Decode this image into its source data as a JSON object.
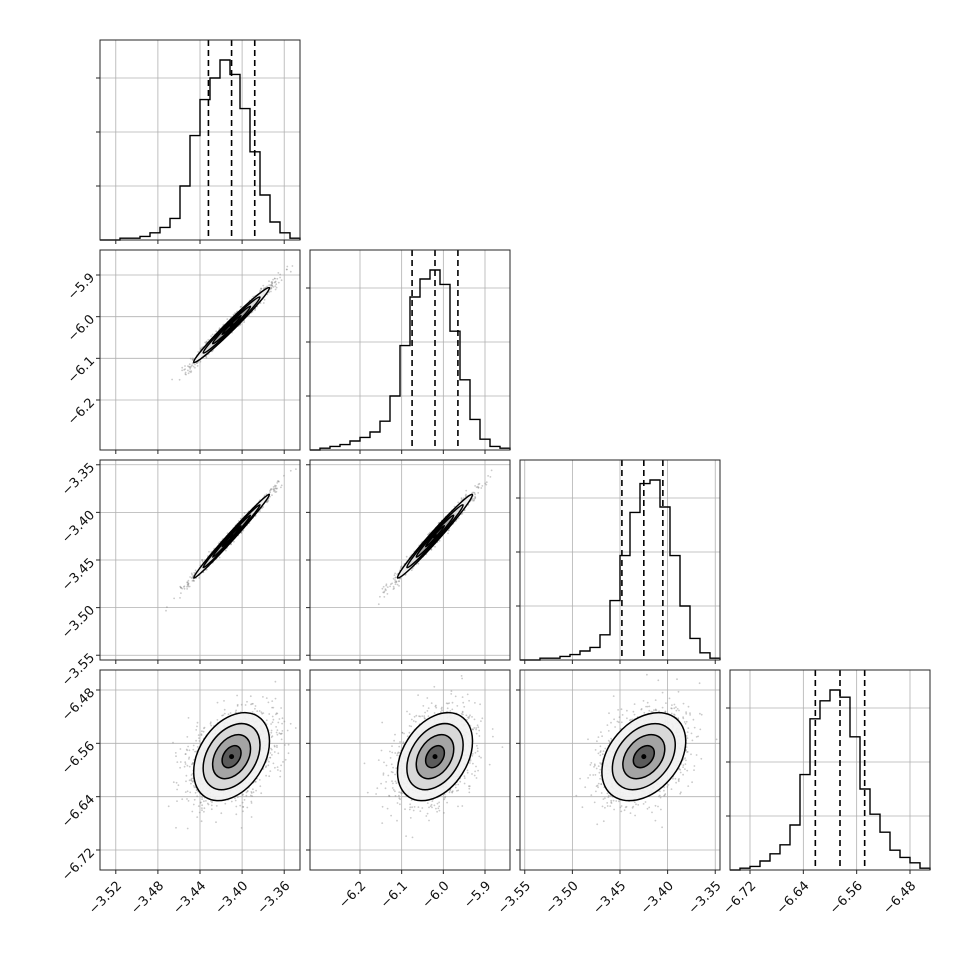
{
  "chart_data": {
    "type": "corner",
    "grid": true,
    "parameters": [
      {
        "range": [
          -3.535,
          -3.345
        ],
        "ticks": [
          -3.52,
          -3.48,
          -3.44,
          -3.4,
          -3.36
        ],
        "tick_labels": [
          "−3.52",
          "−3.48",
          "−3.44",
          "−3.40",
          "−3.36"
        ],
        "mean": -3.41,
        "std": 0.018,
        "quantiles": [
          -3.432,
          -3.41,
          -3.388
        ],
        "histogram": [
          0.0,
          0.0,
          0.01,
          0.01,
          0.02,
          0.04,
          0.07,
          0.12,
          0.3,
          0.58,
          0.78,
          0.9,
          1.0,
          0.92,
          0.73,
          0.49,
          0.25,
          0.1,
          0.04,
          0.01
        ]
      },
      {
        "range": [
          -6.32,
          -5.84
        ],
        "ticks": [
          -6.2,
          -6.1,
          -6.0,
          -5.9
        ],
        "tick_labels": [
          "−6.2",
          "−6.1",
          "−6.0",
          "−5.9"
        ],
        "mean": -6.02,
        "std": 0.045,
        "quantiles": [
          -6.075,
          -6.02,
          -5.965
        ],
        "histogram": [
          0.0,
          0.01,
          0.02,
          0.03,
          0.05,
          0.07,
          0.1,
          0.16,
          0.3,
          0.58,
          0.85,
          0.95,
          1.0,
          0.92,
          0.66,
          0.39,
          0.17,
          0.06,
          0.02,
          0.01
        ]
      },
      {
        "range": [
          -3.555,
          -3.345
        ],
        "ticks": [
          -3.55,
          -3.5,
          -3.45,
          -3.4,
          -3.35
        ],
        "tick_labels": [
          "−3.55",
          "−3.50",
          "−3.45",
          "−3.40",
          "−3.35"
        ],
        "mean": -3.425,
        "std": 0.022,
        "quantiles": [
          -3.448,
          -3.425,
          -3.405
        ],
        "histogram": [
          0.0,
          0.0,
          0.01,
          0.01,
          0.02,
          0.03,
          0.05,
          0.07,
          0.14,
          0.33,
          0.58,
          0.82,
          0.98,
          1.0,
          0.85,
          0.58,
          0.3,
          0.12,
          0.04,
          0.01
        ]
      },
      {
        "range": [
          -6.75,
          -6.45
        ],
        "ticks": [
          -6.72,
          -6.64,
          -6.56,
          -6.48
        ],
        "tick_labels": [
          "−6.72",
          "−6.64",
          "−6.56",
          "−6.48"
        ],
        "mean": -6.58,
        "std": 0.033,
        "quantiles": [
          -6.622,
          -6.585,
          -6.548
        ],
        "histogram": [
          0.0,
          0.01,
          0.02,
          0.05,
          0.09,
          0.14,
          0.25,
          0.53,
          0.84,
          0.94,
          1.0,
          0.96,
          0.74,
          0.45,
          0.31,
          0.21,
          0.11,
          0.07,
          0.04,
          0.01
        ]
      }
    ],
    "correlations": [
      {
        "pair": [
          0,
          1
        ],
        "rho": 0.985
      },
      {
        "pair": [
          0,
          2
        ],
        "rho": 0.992
      },
      {
        "pair": [
          1,
          2
        ],
        "rho": 0.985
      },
      {
        "pair": [
          0,
          3
        ],
        "rho": 0.35
      },
      {
        "pair": [
          1,
          3
        ],
        "rho": 0.35
      },
      {
        "pair": [
          2,
          3
        ],
        "rho": 0.35
      }
    ],
    "contour_levels_sigma": [
      0.5,
      1.0,
      1.5,
      2.0
    ]
  }
}
